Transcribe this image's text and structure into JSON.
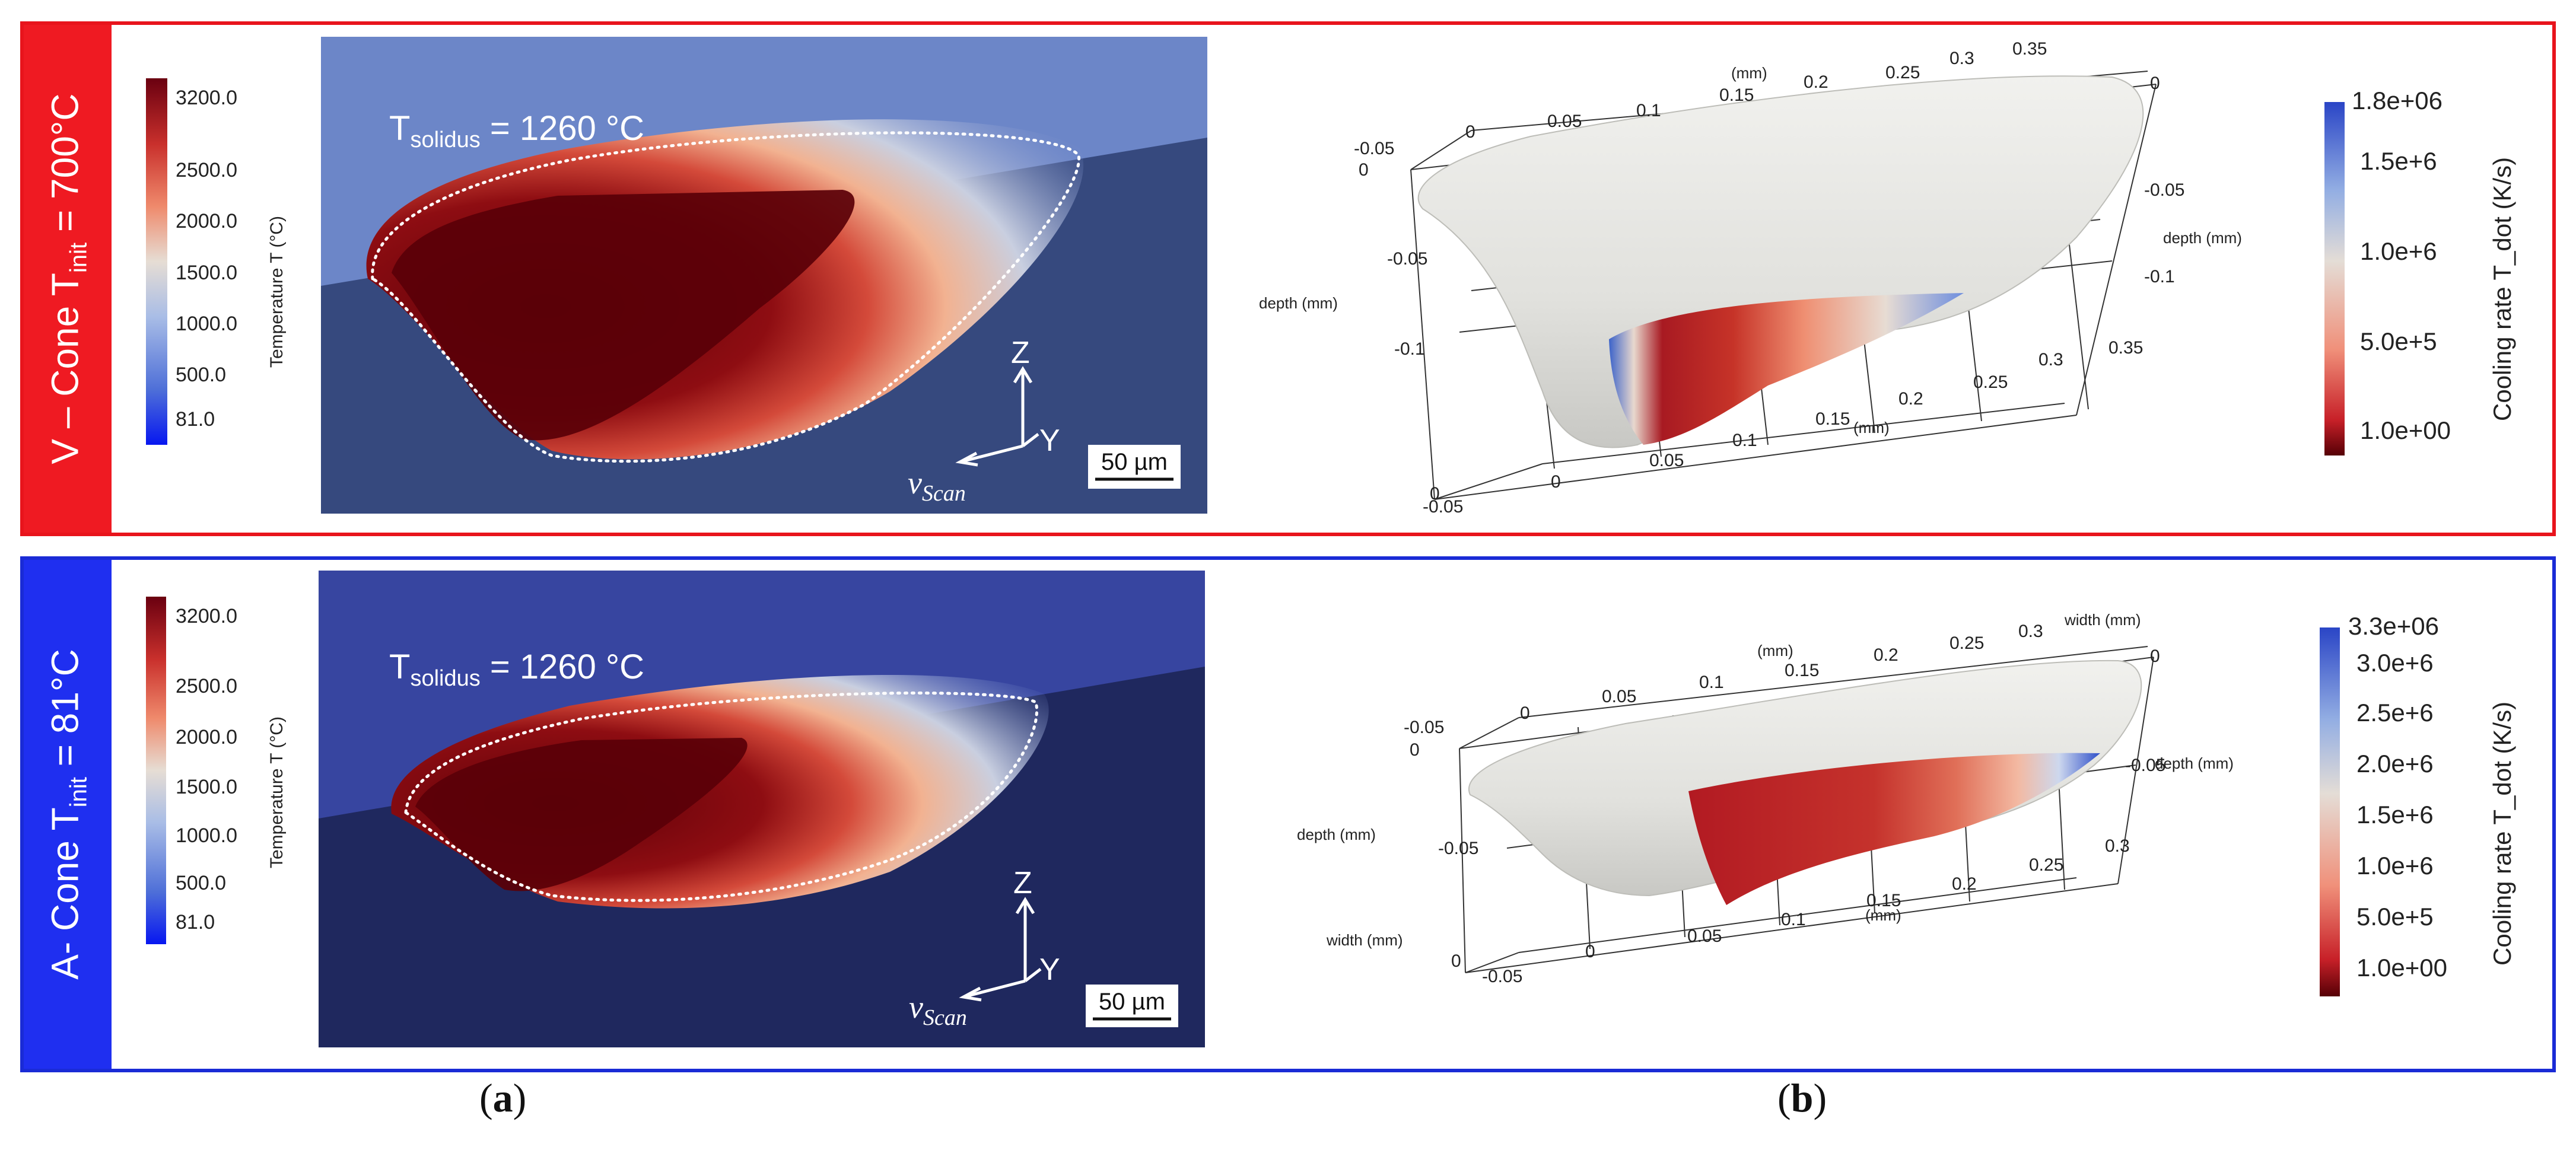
{
  "rows": [
    {
      "tag_pre": "V – Cone T",
      "tag_sub": "init",
      "tag_post": " = 700°C",
      "temp_legend": {
        "title": "Temperature T (°C)",
        "ticks": [
          "3200.0",
          "2500.0",
          "2000.0",
          "1500.0",
          "1000.0",
          "500.0",
          "81.0"
        ]
      },
      "solidus": {
        "pre": "T",
        "sub": "solidus",
        "post": " = 1260 °C"
      },
      "scalebar": "50 µm",
      "axes": {
        "z": "Z",
        "y": "Y",
        "v": "v",
        "v_sub": "Scan"
      },
      "cooling_legend": {
        "title": "Cooling rate T_dot (K/s)",
        "ticks": [
          "1.8e+06",
          "1.5e+6",
          "1.0e+6",
          "5.0e+5",
          "1.0e+00"
        ]
      },
      "grid_labels": {
        "top_axis": [
          "0",
          "0.05",
          "0.1",
          "0.15",
          "0.2",
          "0.25",
          "0.3",
          "0.35"
        ],
        "top_unit": "(mm)",
        "left_top": "-0.05",
        "left_zero": "0",
        "right_top": "0",
        "right_mid": "-0.05",
        "right_low": "-0.1",
        "right_unit": "depth (mm)",
        "left_depth_unit": "depth (mm)",
        "left_mid": "-0.05",
        "left_low": "-0.1",
        "bottom_axis": [
          "-0.05",
          "0",
          "0.05",
          "0.1",
          "0.15",
          "0.2",
          "0.25",
          "0.3",
          "0.35"
        ],
        "bottom_unit": "(mm)",
        "bottom_left_zero": "0"
      }
    },
    {
      "tag_pre": "A- Cone T",
      "tag_sub": "init",
      "tag_post": " = 81°C",
      "temp_legend": {
        "title": "Temperature T (°C)",
        "ticks": [
          "3200.0",
          "2500.0",
          "2000.0",
          "1500.0",
          "1000.0",
          "500.0",
          "81.0"
        ]
      },
      "solidus": {
        "pre": "T",
        "sub": "solidus",
        "post": " = 1260 °C"
      },
      "scalebar": "50 µm",
      "axes": {
        "z": "Z",
        "y": "Y",
        "v": "v",
        "v_sub": "Scan"
      },
      "cooling_legend": {
        "title": "Cooling rate T_dot (K/s)",
        "ticks": [
          "3.3e+06",
          "3.0e+6",
          "2.5e+6",
          "2.0e+6",
          "1.5e+6",
          "1.0e+6",
          "5.0e+5",
          "1.0e+00"
        ]
      },
      "grid_labels": {
        "top_axis": [
          "0",
          "0.05",
          "0.1",
          "0.15",
          "0.2",
          "0.25",
          "0.3"
        ],
        "top_unit": "(mm)",
        "top_right_unit": "width (mm)",
        "left_top": "-0.05",
        "left_zero": "0",
        "right_top": "0",
        "right_mid": "-0.05",
        "right_unit": "depth (mm)",
        "left_depth_unit": "depth (mm)",
        "left_mid": "-0.05",
        "left_width_unit": "width (mm)",
        "bottom_axis": [
          "-0.05",
          "0",
          "0.05",
          "0.1",
          "0.15",
          "0.2",
          "0.25",
          "0.3"
        ],
        "bottom_unit": "(mm)",
        "bottom_left_zero": "0"
      }
    }
  ],
  "panel_labels": {
    "a": "a",
    "b": "b"
  },
  "colors": {
    "top_border": "#e8141c",
    "bottom_border": "#1a2bd6",
    "hot": "#5c0008",
    "cold": "#1b2a5c"
  }
}
